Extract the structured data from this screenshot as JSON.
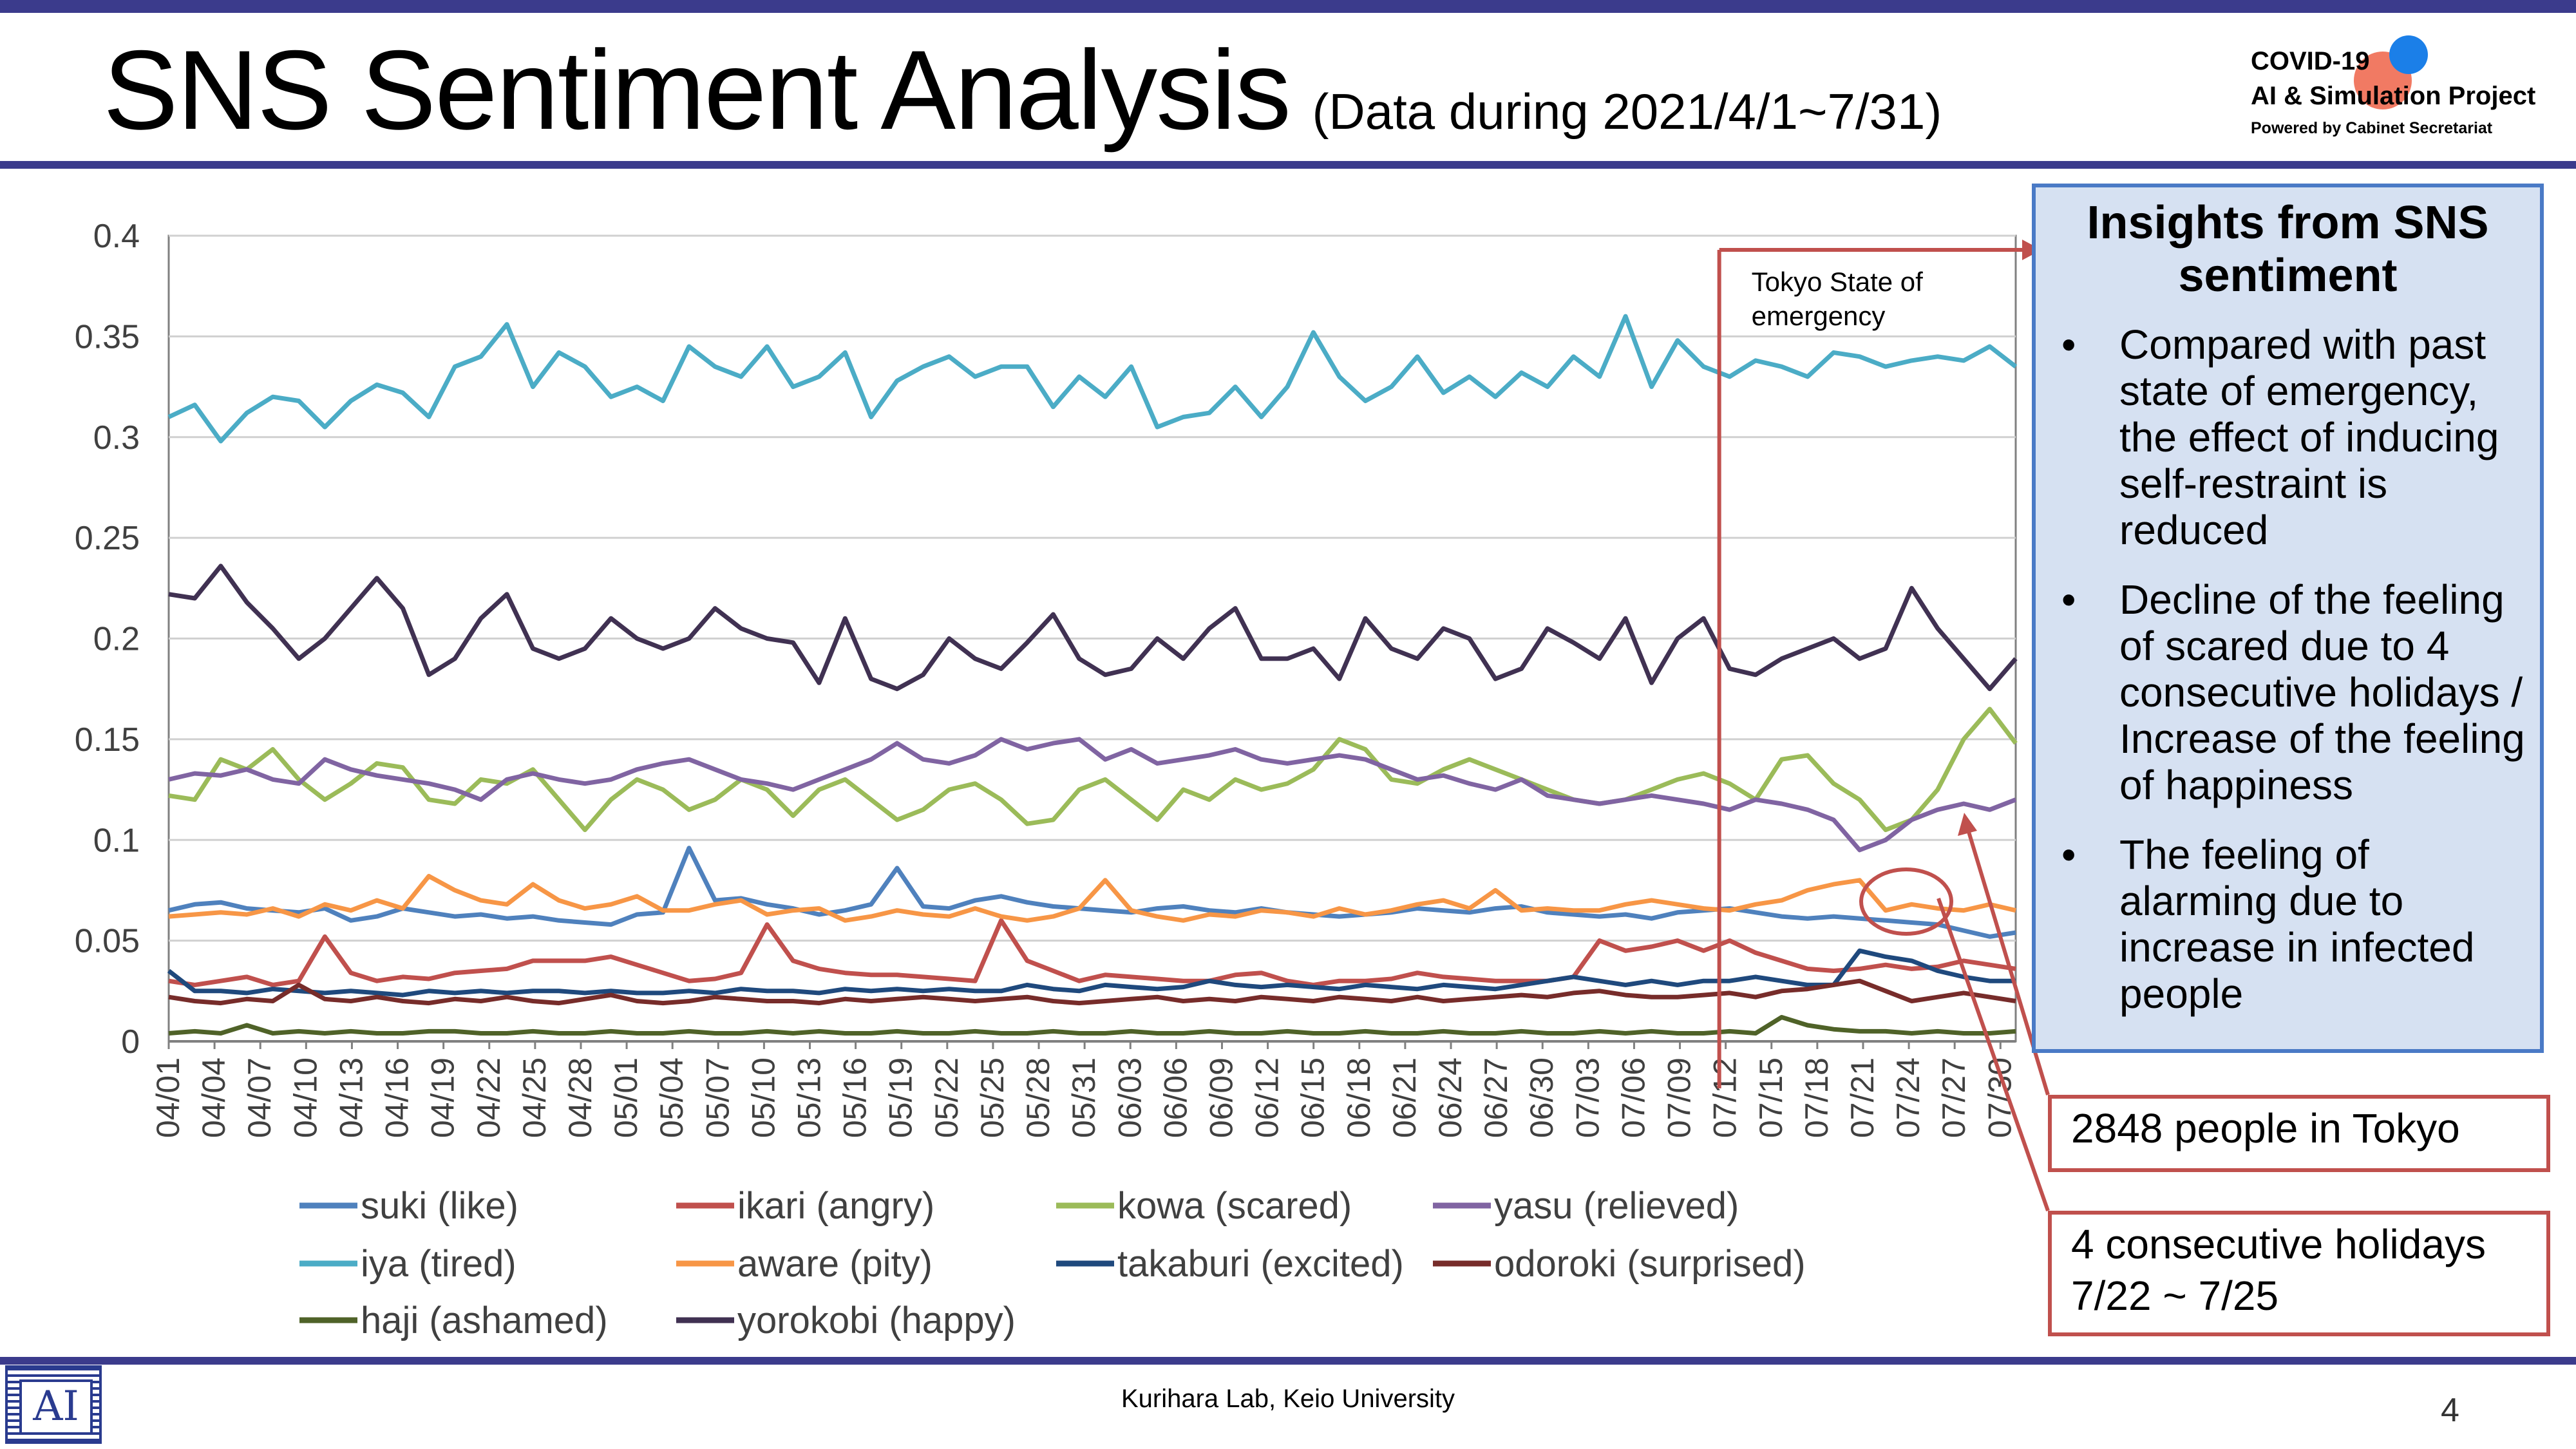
{
  "header": {
    "title": "SNS Sentiment Analysis",
    "subtitle": "(Data during 2021/4/1~7/31)",
    "logo_line1": "COVID-19",
    "logo_line2": "AI & Simulation Project",
    "logo_line3": "Powered by Cabinet Secretariat"
  },
  "annotation": {
    "emergency_label_line1": "Tokyo State of",
    "emergency_label_line2": "emergency"
  },
  "insights": {
    "title_line1": "Insights from SNS",
    "title_line2": "sentiment",
    "bullet_glyph": "•",
    "items": [
      "Compared with past state of emergency, the effect of inducing self-restraint is reduced",
      "Decline of the feeling of scared due to 4 consecutive holidays / Increase of the feeling of happiness",
      "The feeling of alarming due to increase in infected people"
    ]
  },
  "callouts": {
    "tokyo": "2848 people in Tokyo",
    "holidays_line1": "4 consecutive holidays",
    "holidays_line2": "7/22 ~ 7/25"
  },
  "footer": {
    "text": "Kurihara Lab, Keio University",
    "page": "4",
    "lab_logo_glyph": "AI"
  },
  "colors": {
    "header_bar": "#3b3b8c",
    "annotation_red": "#c0504d",
    "insights_border": "#4a7ac6",
    "insights_fill": "#d6e1f2"
  },
  "chart_data": {
    "type": "line",
    "title": "",
    "xlabel": "",
    "ylabel": "",
    "ylim": [
      0,
      0.4
    ],
    "y_ticks": [
      "0",
      "0.05",
      "0.1",
      "0.15",
      "0.2",
      "0.25",
      "0.3",
      "0.35",
      "0.4"
    ],
    "grid": true,
    "legend_position": "bottom",
    "x_tick_labels": [
      "04/01",
      "04/04",
      "04/07",
      "04/10",
      "04/13",
      "04/16",
      "04/19",
      "04/22",
      "04/25",
      "04/28",
      "05/01",
      "05/04",
      "05/07",
      "05/10",
      "05/13",
      "05/16",
      "05/19",
      "05/22",
      "05/25",
      "05/28",
      "05/31",
      "06/03",
      "06/06",
      "06/09",
      "06/12",
      "06/15",
      "06/18",
      "06/21",
      "06/24",
      "06/27",
      "06/30",
      "07/03",
      "07/06",
      "07/09",
      "07/12",
      "07/15",
      "07/18",
      "07/21",
      "07/24",
      "07/27",
      "07/30"
    ],
    "x_range": [
      "04/01",
      "07/31"
    ],
    "emergency_start": "07/12",
    "series": [
      {
        "name": "suki (like)",
        "color": "#4f81bd",
        "values": [
          0.065,
          0.068,
          0.069,
          0.066,
          0.065,
          0.064,
          0.066,
          0.06,
          0.062,
          0.066,
          0.064,
          0.062,
          0.063,
          0.061,
          0.062,
          0.06,
          0.059,
          0.058,
          0.063,
          0.064,
          0.096,
          0.07,
          0.071,
          0.068,
          0.066,
          0.063,
          0.065,
          0.068,
          0.086,
          0.067,
          0.066,
          0.07,
          0.072,
          0.069,
          0.067,
          0.066,
          0.065,
          0.064,
          0.066,
          0.067,
          0.065,
          0.064,
          0.066,
          0.064,
          0.063,
          0.062,
          0.063,
          0.064,
          0.066,
          0.065,
          0.064,
          0.066,
          0.067,
          0.064,
          0.063,
          0.062,
          0.063,
          0.061,
          0.064,
          0.065,
          0.066,
          0.064,
          0.062,
          0.061,
          0.062,
          0.061,
          0.06,
          0.059,
          0.058,
          0.055,
          0.052,
          0.054
        ]
      },
      {
        "name": "ikari (angry)",
        "color": "#c0504d",
        "values": [
          0.03,
          0.028,
          0.03,
          0.032,
          0.028,
          0.03,
          0.052,
          0.034,
          0.03,
          0.032,
          0.031,
          0.034,
          0.035,
          0.036,
          0.04,
          0.04,
          0.04,
          0.042,
          0.038,
          0.034,
          0.03,
          0.031,
          0.034,
          0.058,
          0.04,
          0.036,
          0.034,
          0.033,
          0.033,
          0.032,
          0.031,
          0.03,
          0.06,
          0.04,
          0.035,
          0.03,
          0.033,
          0.032,
          0.031,
          0.03,
          0.03,
          0.033,
          0.034,
          0.03,
          0.028,
          0.03,
          0.03,
          0.031,
          0.034,
          0.032,
          0.031,
          0.03,
          0.03,
          0.03,
          0.032,
          0.05,
          0.045,
          0.047,
          0.05,
          0.045,
          0.05,
          0.044,
          0.04,
          0.036,
          0.035,
          0.036,
          0.038,
          0.036,
          0.037,
          0.04,
          0.038,
          0.036
        ]
      },
      {
        "name": "kowa (scared)",
        "color": "#9bbb59",
        "values": [
          0.122,
          0.12,
          0.14,
          0.135,
          0.145,
          0.13,
          0.12,
          0.128,
          0.138,
          0.136,
          0.12,
          0.118,
          0.13,
          0.128,
          0.135,
          0.12,
          0.105,
          0.12,
          0.13,
          0.125,
          0.115,
          0.12,
          0.13,
          0.125,
          0.112,
          0.125,
          0.13,
          0.12,
          0.11,
          0.115,
          0.125,
          0.128,
          0.12,
          0.108,
          0.11,
          0.125,
          0.13,
          0.12,
          0.11,
          0.125,
          0.12,
          0.13,
          0.125,
          0.128,
          0.135,
          0.15,
          0.145,
          0.13,
          0.128,
          0.135,
          0.14,
          0.135,
          0.13,
          0.125,
          0.12,
          0.118,
          0.12,
          0.125,
          0.13,
          0.133,
          0.128,
          0.12,
          0.14,
          0.142,
          0.128,
          0.12,
          0.105,
          0.11,
          0.125,
          0.15,
          0.165,
          0.148
        ]
      },
      {
        "name": "yasu (relieved)",
        "color": "#8064a2",
        "values": [
          0.13,
          0.133,
          0.132,
          0.135,
          0.13,
          0.128,
          0.14,
          0.135,
          0.132,
          0.13,
          0.128,
          0.125,
          0.12,
          0.13,
          0.133,
          0.13,
          0.128,
          0.13,
          0.135,
          0.138,
          0.14,
          0.135,
          0.13,
          0.128,
          0.125,
          0.13,
          0.135,
          0.14,
          0.148,
          0.14,
          0.138,
          0.142,
          0.15,
          0.145,
          0.148,
          0.15,
          0.14,
          0.145,
          0.138,
          0.14,
          0.142,
          0.145,
          0.14,
          0.138,
          0.14,
          0.142,
          0.14,
          0.135,
          0.13,
          0.132,
          0.128,
          0.125,
          0.13,
          0.122,
          0.12,
          0.118,
          0.12,
          0.122,
          0.12,
          0.118,
          0.115,
          0.12,
          0.118,
          0.115,
          0.11,
          0.095,
          0.1,
          0.11,
          0.115,
          0.118,
          0.115,
          0.12
        ]
      },
      {
        "name": "iya (tired)",
        "color": "#4bacc6",
        "values": [
          0.31,
          0.316,
          0.298,
          0.312,
          0.32,
          0.318,
          0.305,
          0.318,
          0.326,
          0.322,
          0.31,
          0.335,
          0.34,
          0.356,
          0.325,
          0.342,
          0.335,
          0.32,
          0.325,
          0.318,
          0.345,
          0.335,
          0.33,
          0.345,
          0.325,
          0.33,
          0.342,
          0.31,
          0.328,
          0.335,
          0.34,
          0.33,
          0.335,
          0.335,
          0.315,
          0.33,
          0.32,
          0.335,
          0.305,
          0.31,
          0.312,
          0.325,
          0.31,
          0.325,
          0.352,
          0.33,
          0.318,
          0.325,
          0.34,
          0.322,
          0.33,
          0.32,
          0.332,
          0.325,
          0.34,
          0.33,
          0.36,
          0.325,
          0.348,
          0.335,
          0.33,
          0.338,
          0.335,
          0.33,
          0.342,
          0.34,
          0.335,
          0.338,
          0.34,
          0.338,
          0.345,
          0.335
        ]
      },
      {
        "name": "aware (pity)",
        "color": "#f79646",
        "values": [
          0.062,
          0.063,
          0.064,
          0.063,
          0.066,
          0.062,
          0.068,
          0.065,
          0.07,
          0.066,
          0.082,
          0.075,
          0.07,
          0.068,
          0.078,
          0.07,
          0.066,
          0.068,
          0.072,
          0.065,
          0.065,
          0.068,
          0.07,
          0.063,
          0.065,
          0.066,
          0.06,
          0.062,
          0.065,
          0.063,
          0.062,
          0.066,
          0.062,
          0.06,
          0.062,
          0.066,
          0.08,
          0.065,
          0.062,
          0.06,
          0.063,
          0.062,
          0.065,
          0.064,
          0.062,
          0.066,
          0.063,
          0.065,
          0.068,
          0.07,
          0.066,
          0.075,
          0.065,
          0.066,
          0.065,
          0.065,
          0.068,
          0.07,
          0.068,
          0.066,
          0.065,
          0.068,
          0.07,
          0.075,
          0.078,
          0.08,
          0.065,
          0.068,
          0.066,
          0.065,
          0.068,
          0.065
        ]
      },
      {
        "name": "takaburi (excited)",
        "color": "#1f497d",
        "values": [
          0.035,
          0.025,
          0.025,
          0.024,
          0.026,
          0.025,
          0.024,
          0.025,
          0.024,
          0.023,
          0.025,
          0.024,
          0.025,
          0.024,
          0.025,
          0.025,
          0.024,
          0.025,
          0.024,
          0.024,
          0.025,
          0.024,
          0.026,
          0.025,
          0.025,
          0.024,
          0.026,
          0.025,
          0.026,
          0.025,
          0.026,
          0.025,
          0.025,
          0.028,
          0.026,
          0.025,
          0.028,
          0.027,
          0.026,
          0.027,
          0.03,
          0.028,
          0.027,
          0.028,
          0.027,
          0.026,
          0.028,
          0.027,
          0.026,
          0.028,
          0.027,
          0.026,
          0.028,
          0.03,
          0.032,
          0.03,
          0.028,
          0.03,
          0.028,
          0.03,
          0.03,
          0.032,
          0.03,
          0.028,
          0.028,
          0.045,
          0.042,
          0.04,
          0.035,
          0.032,
          0.03,
          0.03
        ]
      },
      {
        "name": "odoroki (surprised)",
        "color": "#772c2a",
        "values": [
          0.022,
          0.02,
          0.019,
          0.021,
          0.02,
          0.028,
          0.021,
          0.02,
          0.022,
          0.02,
          0.019,
          0.021,
          0.02,
          0.022,
          0.02,
          0.019,
          0.021,
          0.023,
          0.02,
          0.019,
          0.02,
          0.022,
          0.021,
          0.02,
          0.02,
          0.019,
          0.021,
          0.02,
          0.021,
          0.022,
          0.021,
          0.02,
          0.021,
          0.022,
          0.02,
          0.019,
          0.02,
          0.021,
          0.022,
          0.02,
          0.021,
          0.02,
          0.022,
          0.021,
          0.02,
          0.022,
          0.021,
          0.02,
          0.022,
          0.02,
          0.021,
          0.022,
          0.023,
          0.022,
          0.024,
          0.025,
          0.023,
          0.022,
          0.022,
          0.023,
          0.024,
          0.022,
          0.025,
          0.026,
          0.028,
          0.03,
          0.025,
          0.02,
          0.022,
          0.024,
          0.022,
          0.02
        ]
      },
      {
        "name": "haji (ashamed)",
        "color": "#4f6228",
        "values": [
          0.004,
          0.005,
          0.004,
          0.008,
          0.004,
          0.005,
          0.004,
          0.005,
          0.004,
          0.004,
          0.005,
          0.005,
          0.004,
          0.004,
          0.005,
          0.004,
          0.004,
          0.005,
          0.004,
          0.004,
          0.005,
          0.004,
          0.004,
          0.005,
          0.004,
          0.005,
          0.004,
          0.004,
          0.005,
          0.004,
          0.004,
          0.005,
          0.004,
          0.004,
          0.005,
          0.004,
          0.004,
          0.005,
          0.004,
          0.004,
          0.005,
          0.004,
          0.004,
          0.005,
          0.004,
          0.004,
          0.005,
          0.004,
          0.004,
          0.005,
          0.004,
          0.004,
          0.005,
          0.004,
          0.004,
          0.005,
          0.004,
          0.005,
          0.004,
          0.004,
          0.005,
          0.004,
          0.012,
          0.008,
          0.006,
          0.005,
          0.005,
          0.004,
          0.005,
          0.004,
          0.004,
          0.005
        ]
      },
      {
        "name": "yorokobi (happy)",
        "color": "#403152",
        "values": [
          0.222,
          0.22,
          0.236,
          0.218,
          0.205,
          0.19,
          0.2,
          0.215,
          0.23,
          0.215,
          0.182,
          0.19,
          0.21,
          0.222,
          0.195,
          0.19,
          0.195,
          0.21,
          0.2,
          0.195,
          0.2,
          0.215,
          0.205,
          0.2,
          0.198,
          0.178,
          0.21,
          0.18,
          0.175,
          0.182,
          0.2,
          0.19,
          0.185,
          0.198,
          0.212,
          0.19,
          0.182,
          0.185,
          0.2,
          0.19,
          0.205,
          0.215,
          0.19,
          0.19,
          0.195,
          0.18,
          0.21,
          0.195,
          0.19,
          0.205,
          0.2,
          0.18,
          0.185,
          0.205,
          0.198,
          0.19,
          0.21,
          0.178,
          0.2,
          0.21,
          0.185,
          0.182,
          0.19,
          0.195,
          0.2,
          0.19,
          0.195,
          0.225,
          0.205,
          0.19,
          0.175,
          0.19
        ]
      }
    ]
  }
}
